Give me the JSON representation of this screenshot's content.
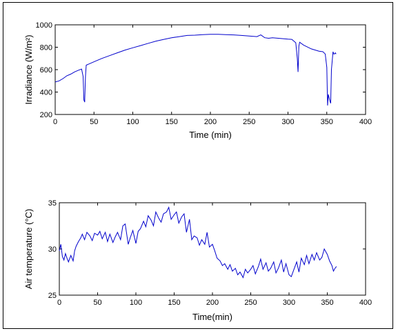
{
  "chart_data": [
    {
      "type": "line",
      "xlabel": "Time (min)",
      "ylabel": "Irradiance  (W/m²)",
      "xlim": [
        0,
        400
      ],
      "ylim": [
        200,
        1000
      ],
      "xticks": [
        "0",
        "50",
        "100",
        "150",
        "200",
        "250",
        "300",
        "350",
        "400"
      ],
      "yticks": [
        "200",
        "400",
        "600",
        "800",
        "1000"
      ],
      "grid": false,
      "line_color": "#0000cc",
      "series": [
        {
          "x": [
            0,
            5,
            10,
            15,
            20,
            25,
            30,
            34,
            36,
            37,
            38,
            39,
            40,
            45,
            50,
            55,
            60,
            70,
            80,
            90,
            100,
            110,
            120,
            130,
            140,
            150,
            160,
            170,
            180,
            190,
            200,
            210,
            220,
            230,
            240,
            250,
            260,
            265,
            270,
            275,
            280,
            290,
            300,
            305,
            310,
            312,
            313,
            314,
            315,
            320,
            330,
            340,
            345,
            348,
            350,
            351,
            352,
            353,
            354,
            355,
            356,
            358,
            359,
            360,
            361,
            362
          ],
          "y": [
            490,
            500,
            520,
            545,
            560,
            580,
            595,
            605,
            540,
            330,
            310,
            540,
            640,
            655,
            670,
            685,
            700,
            725,
            750,
            775,
            795,
            815,
            835,
            855,
            870,
            885,
            895,
            905,
            908,
            912,
            915,
            915,
            912,
            910,
            905,
            900,
            895,
            910,
            885,
            880,
            885,
            878,
            872,
            870,
            840,
            700,
            580,
            810,
            845,
            820,
            785,
            765,
            760,
            740,
            620,
            280,
            380,
            350,
            320,
            300,
            600,
            760,
            740,
            740,
            750,
            740
          ]
        }
      ]
    },
    {
      "type": "line",
      "xlabel": "Time(min)",
      "ylabel": "Air temperature  (°C)",
      "xlim": [
        0,
        400
      ],
      "ylim": [
        25,
        35
      ],
      "xticks": [
        "0",
        "50",
        "100",
        "150",
        "200",
        "250",
        "300",
        "350",
        "400"
      ],
      "yticks": [
        "25",
        "30",
        "35"
      ],
      "grid": false,
      "line_color": "#0000cc",
      "series": [
        {
          "x": [
            0,
            2,
            4,
            6,
            8,
            10,
            12,
            15,
            18,
            20,
            22,
            25,
            28,
            30,
            33,
            36,
            40,
            43,
            46,
            50,
            53,
            56,
            60,
            63,
            66,
            70,
            73,
            76,
            80,
            83,
            86,
            90,
            93,
            96,
            100,
            103,
            106,
            110,
            113,
            116,
            120,
            123,
            126,
            130,
            133,
            136,
            140,
            143,
            146,
            150,
            153,
            156,
            160,
            163,
            166,
            170,
            173,
            176,
            180,
            183,
            186,
            190,
            193,
            196,
            200,
            203,
            206,
            210,
            213,
            216,
            220,
            223,
            226,
            230,
            233,
            236,
            240,
            243,
            246,
            250,
            253,
            256,
            260,
            263,
            266,
            270,
            273,
            276,
            280,
            283,
            286,
            290,
            293,
            296,
            300,
            303,
            306,
            310,
            313,
            316,
            320,
            323,
            326,
            330,
            333,
            336,
            340,
            343,
            346,
            350,
            353,
            356,
            358,
            360,
            362
          ],
          "y": [
            29.8,
            30.5,
            29.2,
            28.8,
            29.5,
            29.0,
            28.6,
            29.3,
            28.7,
            29.8,
            30.3,
            30.8,
            31.2,
            31.6,
            31.0,
            31.8,
            31.4,
            30.9,
            31.7,
            31.5,
            31.9,
            31.1,
            31.8,
            30.8,
            31.6,
            30.7,
            31.3,
            31.8,
            31.0,
            32.5,
            32.7,
            30.5,
            31.3,
            32.0,
            30.6,
            31.9,
            32.2,
            33.0,
            32.4,
            33.6,
            33.1,
            32.5,
            34.0,
            33.3,
            32.9,
            33.8,
            34.0,
            34.5,
            33.2,
            33.7,
            34.0,
            32.8,
            33.5,
            33.8,
            31.8,
            33.2,
            31.0,
            31.4,
            31.2,
            30.4,
            31.0,
            30.5,
            31.8,
            30.2,
            30.5,
            29.8,
            29.0,
            28.7,
            28.2,
            28.4,
            27.8,
            28.3,
            27.6,
            27.9,
            27.2,
            27.5,
            26.9,
            27.8,
            27.4,
            27.8,
            28.2,
            27.3,
            28.1,
            28.9,
            27.8,
            28.5,
            27.6,
            27.9,
            28.6,
            27.4,
            27.9,
            28.8,
            27.5,
            28.4,
            27.2,
            27.0,
            27.7,
            28.6,
            27.5,
            29.0,
            28.3,
            29.3,
            28.4,
            29.4,
            28.8,
            29.6,
            28.8,
            29.1,
            30.0,
            29.4,
            28.7,
            28.2,
            27.6,
            27.9,
            28.1
          ]
        }
      ]
    }
  ]
}
